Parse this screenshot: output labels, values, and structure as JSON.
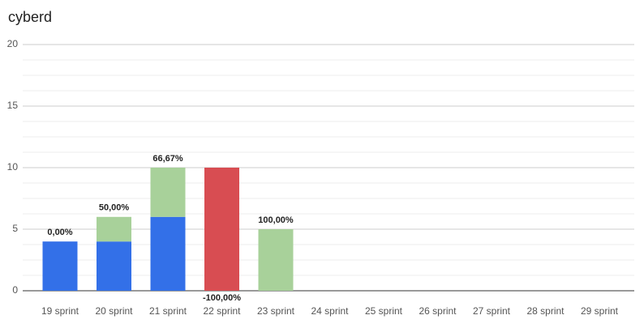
{
  "chart_data": {
    "type": "stacked_bar",
    "title": "cyberd",
    "categories": [
      "19 sprint",
      "20 sprint",
      "21 sprint",
      "22 sprint",
      "23 sprint",
      "24 sprint",
      "25 sprint",
      "26 sprint",
      "27 sprint",
      "28 sprint",
      "29 sprint"
    ],
    "series": [
      {
        "color": "#3370e8",
        "values": [
          4,
          4,
          6,
          null,
          null,
          null,
          null,
          null,
          null,
          null,
          null
        ]
      },
      {
        "color": "#a8d19a",
        "values": [
          null,
          2,
          4,
          null,
          5,
          null,
          null,
          null,
          null,
          null,
          null
        ]
      },
      {
        "color": "#d84d52",
        "values": [
          null,
          null,
          null,
          10,
          null,
          null,
          null,
          null,
          null,
          null,
          null
        ]
      }
    ],
    "annotations": [
      "0,00%",
      "50,00%",
      "66,67%",
      "-100,00%",
      "100,00%",
      null,
      null,
      null,
      null,
      null,
      null
    ],
    "ylim": [
      0,
      20
    ],
    "yticks": [
      0,
      5,
      10,
      15,
      20
    ],
    "yminorticks": [
      1.25,
      2.5,
      3.75,
      6.25,
      7.5,
      8.75,
      11.25,
      12.5,
      13.75,
      16.25,
      17.5,
      18.75
    ],
    "grid": true
  }
}
